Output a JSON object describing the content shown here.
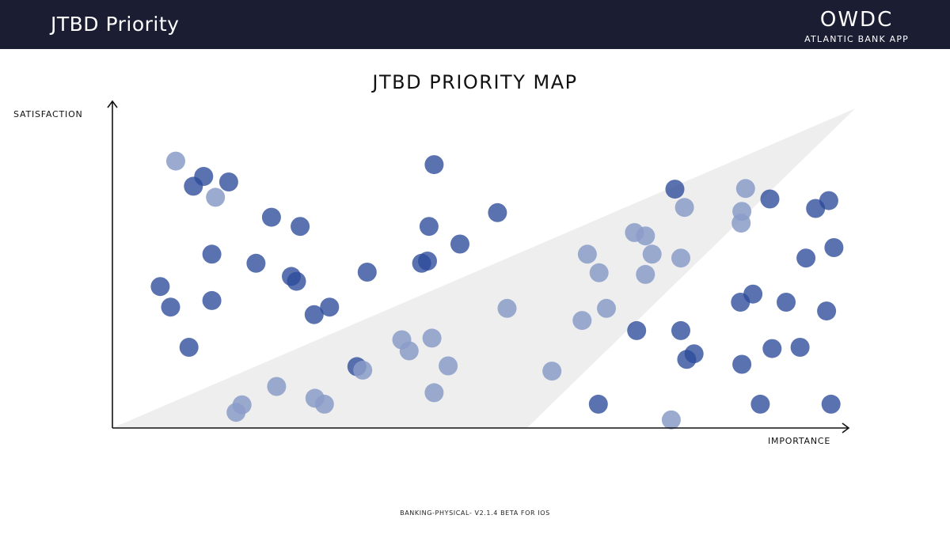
{
  "header": {
    "title": "JTBD Priority",
    "brand_name": "OWDC",
    "brand_subtitle": "ATLANTIC BANK APP"
  },
  "footer": {
    "text": "BANKING-PHYSICAL- V2.1.4 BETA FOR IOS"
  },
  "colors": {
    "header_bg": "#1b1d33",
    "dot_dark": "#2c4a9a",
    "dot_light": "#8a9cc8",
    "zone": "#eeeeee"
  },
  "chart_data": {
    "type": "scatter",
    "title": "JTBD PRIORITY MAP",
    "xlabel": "IMPORTANCE",
    "ylabel": "SATISFACTION",
    "xlim": [
      0,
      100
    ],
    "ylim": [
      0,
      100
    ],
    "grid": false,
    "ticks": false,
    "series": [
      {
        "kind": "dark",
        "points": [
          [
            12.4,
            77.0
          ],
          [
            11.0,
            74.0
          ],
          [
            15.8,
            75.3
          ],
          [
            6.5,
            43.3
          ],
          [
            7.9,
            37.0
          ],
          [
            13.5,
            53.2
          ],
          [
            13.5,
            39.0
          ],
          [
            10.4,
            24.7
          ],
          [
            21.6,
            64.5
          ],
          [
            19.5,
            50.4
          ],
          [
            25.5,
            61.7
          ],
          [
            25.0,
            44.9
          ],
          [
            24.3,
            46.4
          ],
          [
            27.4,
            34.7
          ],
          [
            29.5,
            37.0
          ],
          [
            34.6,
            47.7
          ],
          [
            33.2,
            18.8
          ],
          [
            43.7,
            80.6
          ],
          [
            43.0,
            61.7
          ],
          [
            42.8,
            51.1
          ],
          [
            42.0,
            50.4
          ],
          [
            47.2,
            56.3
          ],
          [
            52.3,
            65.9
          ],
          [
            89.3,
            70.1
          ],
          [
            95.5,
            67.2
          ],
          [
            97.3,
            69.6
          ],
          [
            94.2,
            52.0
          ],
          [
            98.0,
            55.2
          ],
          [
            85.3,
            38.5
          ],
          [
            87.0,
            41.0
          ],
          [
            91.5,
            38.5
          ],
          [
            97.0,
            35.8
          ],
          [
            71.2,
            29.8
          ],
          [
            77.2,
            29.8
          ],
          [
            79.0,
            22.7
          ],
          [
            78.0,
            21.0
          ],
          [
            85.5,
            19.5
          ],
          [
            89.6,
            24.3
          ],
          [
            93.4,
            24.7
          ],
          [
            66.0,
            7.3
          ],
          [
            88.0,
            7.3
          ],
          [
            97.6,
            7.3
          ],
          [
            76.4,
            73.1
          ]
        ]
      },
      {
        "kind": "light",
        "points": [
          [
            8.6,
            81.7
          ],
          [
            14.0,
            70.6
          ],
          [
            34.0,
            17.7
          ],
          [
            22.3,
            12.7
          ],
          [
            27.5,
            9.1
          ],
          [
            28.8,
            7.3
          ],
          [
            17.6,
            7.1
          ],
          [
            16.8,
            4.8
          ],
          [
            39.3,
            27.0
          ],
          [
            40.3,
            23.6
          ],
          [
            43.4,
            27.5
          ],
          [
            45.6,
            19.0
          ],
          [
            43.7,
            10.8
          ],
          [
            53.6,
            36.6
          ],
          [
            59.7,
            17.4
          ],
          [
            64.5,
            53.2
          ],
          [
            66.1,
            47.5
          ],
          [
            63.8,
            32.9
          ],
          [
            67.1,
            36.6
          ],
          [
            70.9,
            59.8
          ],
          [
            72.4,
            58.8
          ],
          [
            73.3,
            53.2
          ],
          [
            72.4,
            47.0
          ],
          [
            77.7,
            67.5
          ],
          [
            77.2,
            52.0
          ],
          [
            86.0,
            73.3
          ],
          [
            85.5,
            66.3
          ],
          [
            85.4,
            62.7
          ],
          [
            75.9,
            2.5
          ]
        ]
      }
    ]
  }
}
